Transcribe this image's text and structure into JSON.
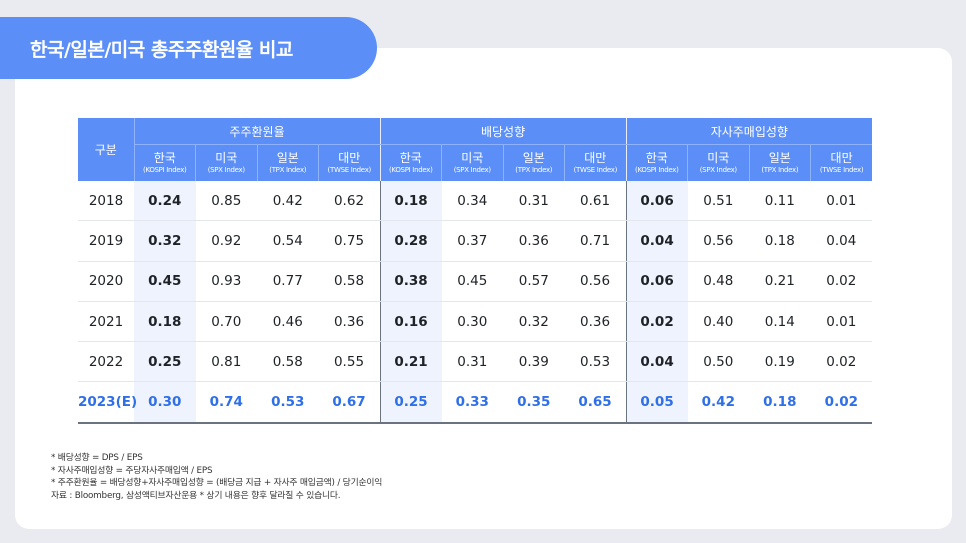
{
  "title": "한국/일본/미국 총주주환원율 비교",
  "table": {
    "corner": "구분",
    "groups": [
      "주주환원율",
      "배당성향",
      "자사주매입성향"
    ],
    "subheaders": [
      {
        "ko": "한국",
        "en": "(KOSPI Index)"
      },
      {
        "ko": "미국",
        "en": "(SPX Index)"
      },
      {
        "ko": "일본",
        "en": "(TPX Index)"
      },
      {
        "ko": "대만",
        "en": "(TWSE Index)"
      }
    ],
    "rows": [
      {
        "year": "2018",
        "values": [
          "0.24",
          "0.85",
          "0.42",
          "0.62",
          "0.18",
          "0.34",
          "0.31",
          "0.61",
          "0.06",
          "0.51",
          "0.11",
          "0.01"
        ]
      },
      {
        "year": "2019",
        "values": [
          "0.32",
          "0.92",
          "0.54",
          "0.75",
          "0.28",
          "0.37",
          "0.36",
          "0.71",
          "0.04",
          "0.56",
          "0.18",
          "0.04"
        ]
      },
      {
        "year": "2020",
        "values": [
          "0.45",
          "0.93",
          "0.77",
          "0.58",
          "0.38",
          "0.45",
          "0.57",
          "0.56",
          "0.06",
          "0.48",
          "0.21",
          "0.02"
        ]
      },
      {
        "year": "2021",
        "values": [
          "0.18",
          "0.70",
          "0.46",
          "0.36",
          "0.16",
          "0.30",
          "0.32",
          "0.36",
          "0.02",
          "0.40",
          "0.14",
          "0.01"
        ]
      },
      {
        "year": "2022",
        "values": [
          "0.25",
          "0.81",
          "0.58",
          "0.55",
          "0.21",
          "0.31",
          "0.39",
          "0.53",
          "0.04",
          "0.50",
          "0.19",
          "0.02"
        ]
      },
      {
        "year": "2023(E)",
        "values": [
          "0.30",
          "0.74",
          "0.53",
          "0.67",
          "0.25",
          "0.33",
          "0.35",
          "0.65",
          "0.05",
          "0.42",
          "0.18",
          "0.02"
        ]
      }
    ]
  },
  "notes": [
    "* 배당성향 = DPS / EPS",
    "* 자사주매입성향 = 주당자사주매입액 / EPS",
    "* 주주환원율 = 배당성향+자사주매입성향 = (배당금 지급 + 자사주 매입금액) / 당기순이익",
    "자료 : Bloomberg, 삼성액티브자산운용    * 상기 내용은 향후 달라질 수 있습니다."
  ],
  "colors": {
    "accent": "#5b8ff7",
    "background": "#e9ebf0",
    "highlight_column": "#eef3fd",
    "estimate_text": "#2f6fe8"
  }
}
